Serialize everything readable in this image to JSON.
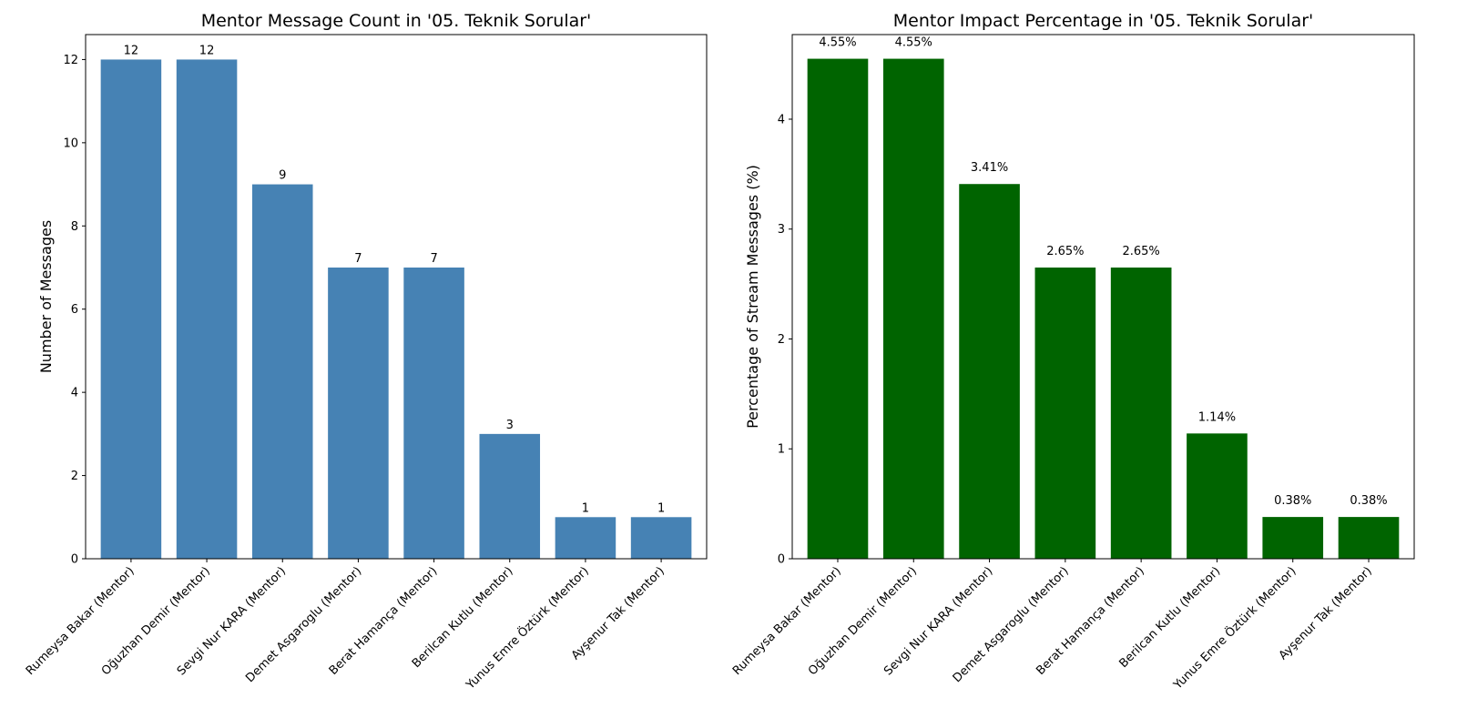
{
  "chart_data": [
    {
      "type": "bar",
      "title": "Mentor Message Count in '05. Teknik Sorular'",
      "xlabel": "",
      "ylabel": "Number of Messages",
      "ylim": [
        0,
        12.6
      ],
      "yticks": [
        0,
        2,
        4,
        6,
        8,
        10,
        12
      ],
      "categories": [
        "Rumeysa Bakar (Mentor)",
        "Oğuzhan Demir (Mentor)",
        "Sevgi Nur KARA (Mentor)",
        "Demet Asgaroglu (Mentor)",
        "Berat Hamança (Mentor)",
        "Berilcan Kutlu (Mentor)",
        "Yunus Emre Öztürk (Mentor)",
        "Ayşenur Tak (Mentor)"
      ],
      "values": [
        12,
        12,
        9,
        7,
        7,
        3,
        1,
        1
      ],
      "labels": [
        "12",
        "12",
        "9",
        "7",
        "7",
        "3",
        "1",
        "1"
      ],
      "color": "#4682b4",
      "grid": false
    },
    {
      "type": "bar",
      "title": "Mentor Impact Percentage in '05. Teknik Sorular'",
      "xlabel": "",
      "ylabel": "Percentage of Stream Messages (%)",
      "ylim": [
        0,
        4.77
      ],
      "yticks": [
        0,
        1,
        2,
        3,
        4
      ],
      "categories": [
        "Rumeysa Bakar (Mentor)",
        "Oğuzhan Demir (Mentor)",
        "Sevgi Nur KARA (Mentor)",
        "Demet Asgaroglu (Mentor)",
        "Berat Hamança (Mentor)",
        "Berilcan Kutlu (Mentor)",
        "Yunus Emre Öztürk (Mentor)",
        "Ayşenur Tak (Mentor)"
      ],
      "values": [
        4.55,
        4.55,
        3.41,
        2.65,
        2.65,
        1.14,
        0.38,
        0.38
      ],
      "labels": [
        "4.55%",
        "4.55%",
        "3.41%",
        "2.65%",
        "2.65%",
        "1.14%",
        "0.38%",
        "0.38%"
      ],
      "color": "#006400",
      "grid": false
    }
  ]
}
